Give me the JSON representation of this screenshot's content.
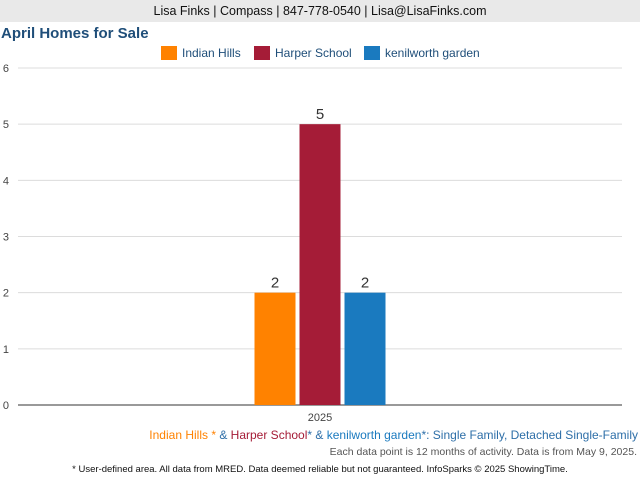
{
  "header": {
    "contact": "Lisa Finks | Compass | 847-778-0540 | Lisa@LisaFinks.com"
  },
  "chart_data": {
    "type": "bar",
    "title": "April Homes for Sale",
    "categories": [
      "2025"
    ],
    "series": [
      {
        "name": "Indian Hills",
        "values": [
          2
        ],
        "color": "#ff8200"
      },
      {
        "name": "Harper School",
        "values": [
          5
        ],
        "color": "#a51c37"
      },
      {
        "name": "kenilworth garden",
        "values": [
          2
        ],
        "color": "#1a7abf"
      }
    ],
    "ylim": [
      0,
      6
    ],
    "yticks": [
      "0",
      "1",
      "2",
      "3",
      "4",
      "5",
      "6"
    ],
    "grid": true,
    "legend_position": "top"
  },
  "footnote": {
    "parts": [
      {
        "text": "Indian Hills *",
        "color": "#ff8200"
      },
      {
        "text": " & ",
        "color": "#2e6fa8"
      },
      {
        "text": "Harper School",
        "color": "#a51c37"
      },
      {
        "text": "* & ",
        "color": "#2e6fa8"
      },
      {
        "text": "kenilworth garden",
        "color": "#1a7abf"
      },
      {
        "text": "*: Single Family, Detached Single-Family",
        "color": "#2e6fa8"
      }
    ],
    "activity_note": "Each data point is 12 months of activity. Data is from May 9, 2025.",
    "disclaimer": "* User-defined area. All data from MRED. Data deemed reliable but not guaranteed. InfoSparks © 2025 ShowingTime."
  }
}
